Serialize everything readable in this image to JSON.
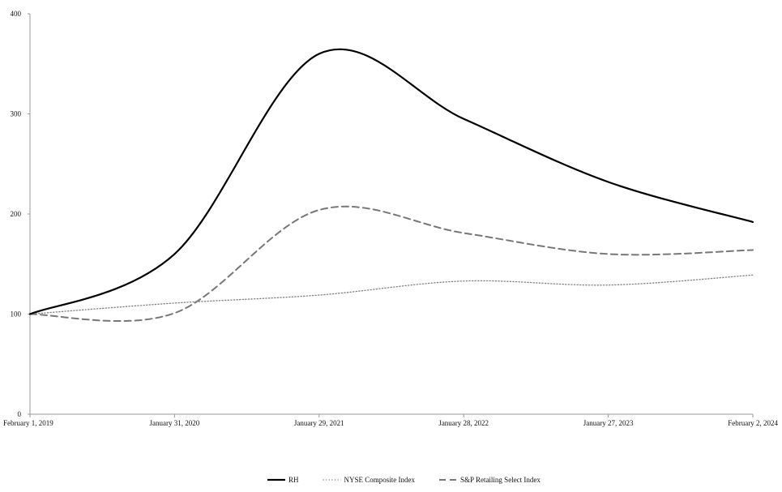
{
  "chart_data": {
    "type": "line",
    "title": "",
    "xlabel": "",
    "ylabel": "",
    "categories": [
      "February 1, 2019",
      "January 31, 2020",
      "January 29, 2021",
      "January 28, 2022",
      "January 27, 2023",
      "February 2, 2024"
    ],
    "y_ticks": [
      "0",
      "100",
      "200",
      "300",
      "400"
    ],
    "ylim": [
      0,
      400
    ],
    "grid": false,
    "legend_position": "bottom-center",
    "series": [
      {
        "name": "RH",
        "values": [
          100,
          160,
          360,
          295,
          232,
          192
        ],
        "color": "#000000",
        "style": "solid"
      },
      {
        "name": "NYSE Composite Index",
        "values": [
          100,
          111,
          119,
          133,
          129,
          139
        ],
        "color": "#808080",
        "style": "dotted"
      },
      {
        "name": "S&P Retailing Select Index",
        "values": [
          100,
          101,
          204,
          181,
          160,
          164
        ],
        "color": "#777777",
        "style": "dashed"
      }
    ]
  }
}
